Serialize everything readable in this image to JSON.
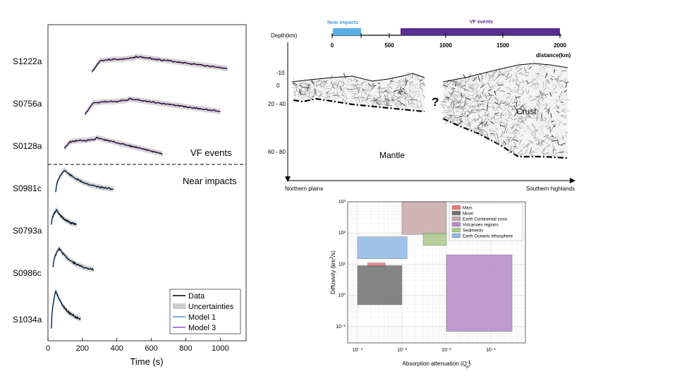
{
  "envelope_panel": {
    "xlabel": "Time (s)",
    "xticks": [
      0,
      200,
      400,
      600,
      800,
      1000
    ],
    "xlim": [
      0,
      1150
    ],
    "stations": [
      "S1222a",
      "S0756a",
      "S0128a",
      "S0981c",
      "S0793a",
      "S0986c",
      "S1034a"
    ],
    "vf_label": "VF events",
    "near_label": "Near impacts",
    "legend": [
      "Data",
      "Uncertainties",
      "Model 1",
      "Model 3"
    ],
    "colors": {
      "data": "#000000",
      "uncertainty": "#cccccc",
      "model1": "#4a90d9",
      "model3": "#9b4dca"
    }
  },
  "cross_section": {
    "depth_label": "Depth(km)",
    "depth_ticks": [
      "-10",
      "0",
      "20 - 40",
      "60 - 80"
    ],
    "scale_label_near": "Near impacts",
    "scale_label_vf": "VF events",
    "distance_ticks": [
      "0",
      "500",
      "1000",
      "1500",
      "2000"
    ],
    "distance_label": "distance(km)",
    "question_mark": "?",
    "crust_label": "Crust",
    "mantle_label": "Mantle",
    "left_label": "Northern plains",
    "right_label": "Southern highlands",
    "colors": {
      "near": "#5aaee8",
      "vf": "#5a2d91"
    }
  },
  "chart_data": {
    "type": "box-region",
    "xlabel": "Absorption attenuation (Q_μ^-1)",
    "ylabel": "Diffusivity (km^2/s)",
    "xscale": "log",
    "yscale": "log",
    "xlim": [
      6e-05,
      0.6
    ],
    "ylim": [
      0.03,
      1000
    ],
    "xtick_labels": [
      "10⁻⁴",
      "10⁻³",
      "10⁻²",
      "10⁻¹"
    ],
    "ytick_labels": [
      "10⁻¹",
      "10⁰",
      "10¹",
      "10²",
      "10³"
    ],
    "series": [
      {
        "name": "Mars",
        "x": [
          0.00017,
          0.00042
        ],
        "y": [
          8,
          11
        ],
        "color": "#e87a7a"
      },
      {
        "name": "Moon",
        "x": [
          0.0001,
          0.001
        ],
        "y": [
          0.5,
          9
        ],
        "color": "#707070"
      },
      {
        "name": "Earth Continental crust",
        "x": [
          0.001,
          0.01
        ],
        "y": [
          90,
          1000
        ],
        "color": "#c9a8a8"
      },
      {
        "name": "Volcanoes regions",
        "x": [
          0.01,
          0.3
        ],
        "y": [
          0.07,
          20
        ],
        "color": "#b48ac8"
      },
      {
        "name": "Sediments",
        "x": [
          0.003,
          0.01
        ],
        "y": [
          40,
          100
        ],
        "color": "#a9c98a"
      },
      {
        "name": "Earth Oceanic lithosphere",
        "x": [
          0.0001,
          0.0013
        ],
        "y": [
          15,
          75
        ],
        "color": "#8fb8e3"
      }
    ]
  }
}
